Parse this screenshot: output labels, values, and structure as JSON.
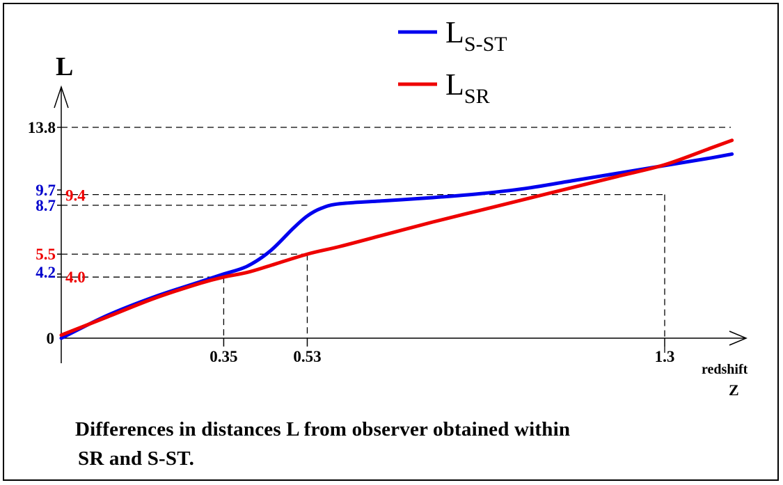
{
  "chart_data": {
    "type": "line",
    "ylabel": "L",
    "xlabel_line1": "redshift",
    "xlabel_line2": "Z",
    "caption_line1": "Differences in distances L from observer obtained within",
    "caption_line2": "SR and S-ST.",
    "x_range": [
      0,
      1.5
    ],
    "y_range": [
      0,
      13.8
    ],
    "x_marks": [
      {
        "value": 0.35,
        "label": "0.35"
      },
      {
        "value": 0.53,
        "label": "0.53"
      },
      {
        "value": 1.3,
        "label": "1.3"
      }
    ],
    "y_marks": [
      {
        "value": 0,
        "label": "0",
        "color": "#000000"
      },
      {
        "value": 4.2,
        "label": "4.2",
        "color": "#0000cc"
      },
      {
        "value": 4.0,
        "label": "4.0",
        "color": "#ee0000"
      },
      {
        "value": 5.5,
        "label": "5.5",
        "color": "#ee0000"
      },
      {
        "value": 8.7,
        "label": "8.7",
        "color": "#0000cc"
      },
      {
        "value": 9.7,
        "label": "9.7",
        "color": "#0000cc"
      },
      {
        "value": 9.4,
        "label": "9.4",
        "color": "#ee0000"
      },
      {
        "value": 13.8,
        "label": "13.8",
        "color": "#000000"
      }
    ],
    "series": [
      {
        "name": "L",
        "name_sub": "S-ST",
        "color": "#0000ee",
        "x": [
          0,
          0.1,
          0.2,
          0.3,
          0.35,
          0.4,
          0.45,
          0.5,
          0.53,
          0.56,
          0.6,
          0.7,
          0.8,
          0.9,
          1.0,
          1.1,
          1.2,
          1.3,
          1.4,
          1.445
        ],
        "y": [
          0,
          1.5,
          2.7,
          3.7,
          4.2,
          4.7,
          5.7,
          7.2,
          8.0,
          8.5,
          8.8,
          9.0,
          9.2,
          9.45,
          9.8,
          10.3,
          10.8,
          11.3,
          11.8,
          12.05
        ]
      },
      {
        "name": "L",
        "name_sub": "SR",
        "color": "#ee0000",
        "x": [
          0,
          0.1,
          0.2,
          0.3,
          0.35,
          0.4,
          0.45,
          0.53,
          0.6,
          0.7,
          0.8,
          0.9,
          1.0,
          1.1,
          1.2,
          1.3,
          1.4,
          1.445
        ],
        "y": [
          0.2,
          1.4,
          2.6,
          3.6,
          4.0,
          4.3,
          4.75,
          5.5,
          6.0,
          6.8,
          7.6,
          8.35,
          9.1,
          9.85,
          10.6,
          11.35,
          12.45,
          12.95
        ]
      }
    ],
    "legend_position": "top-center",
    "grid": false
  }
}
